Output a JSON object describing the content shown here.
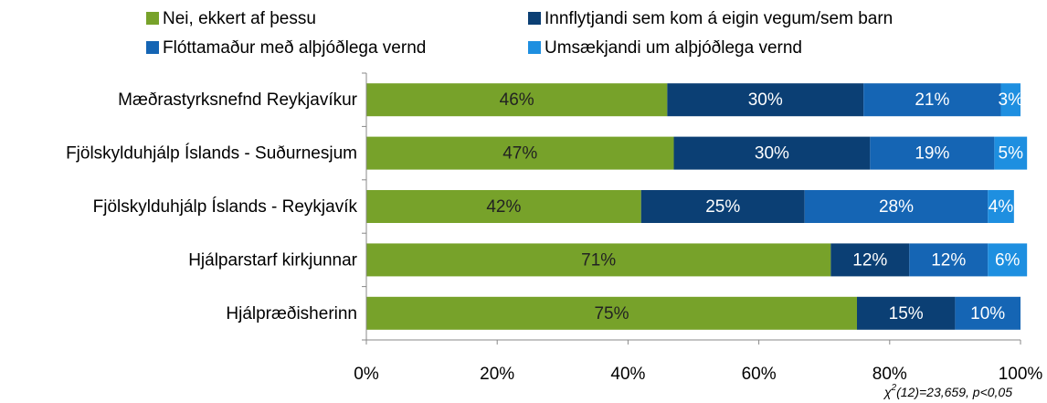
{
  "chart_data": {
    "type": "stacked_barh",
    "categories": [
      "Mæðrastyrksnefnd Reykjavíkur",
      "Fjölskylduhjálp Íslands - Suðurnesjum",
      "Fjölskylduhjálp Íslands - Reykjavík",
      "Hjálparstarf kirkjunnar",
      "Hjálpræðisherinn"
    ],
    "series": [
      {
        "name": "Nei, ekkert af þessu",
        "color": "#77a22a",
        "label_color": "#222222",
        "values": [
          46,
          47,
          42,
          71,
          75
        ],
        "value_labels": [
          "46%",
          "47%",
          "42%",
          "71%",
          "75%"
        ]
      },
      {
        "name": "Innflytjandi sem kom á eigin vegum/sem barn",
        "color": "#0b3f74",
        "label_color": "#ffffff",
        "values": [
          30,
          30,
          25,
          12,
          15
        ],
        "value_labels": [
          "30%",
          "30%",
          "25%",
          "12%",
          "15%"
        ]
      },
      {
        "name": "Flóttamaður með alþjóðlega vernd",
        "color": "#1565b4",
        "label_color": "#ffffff",
        "values": [
          21,
          19,
          28,
          12,
          10
        ],
        "value_labels": [
          "21%",
          "19%",
          "28%",
          "12%",
          "10%"
        ]
      },
      {
        "name": "Umsækjandi um alþjóðlega vernd",
        "color": "#1e8fe0",
        "label_color": "#ffffff",
        "values": [
          3,
          5,
          4,
          6,
          null
        ],
        "value_labels": [
          "3%",
          "5%",
          "4%",
          "6%",
          null
        ]
      }
    ],
    "xlim": [
      0,
      100
    ],
    "xticks": [
      {
        "value": 0,
        "label": "0%"
      },
      {
        "value": 20,
        "label": "20%"
      },
      {
        "value": 40,
        "label": "40%"
      },
      {
        "value": 60,
        "label": "60%"
      },
      {
        "value": 80,
        "label": "80%"
      },
      {
        "value": 100,
        "label": "100%"
      }
    ],
    "annotation": {
      "symbol": "χ",
      "superscript": "2",
      "text": "(12)=23,659,  p<0,05"
    }
  }
}
